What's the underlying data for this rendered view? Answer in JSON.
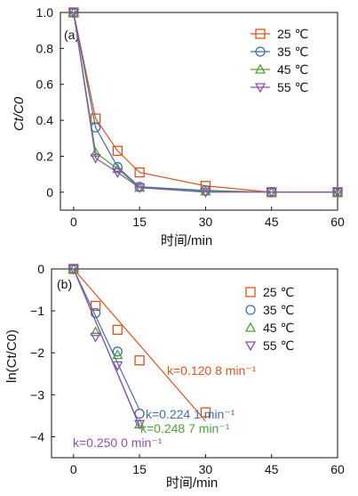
{
  "colors": {
    "s25": "#d9531e",
    "s35": "#3f6fa8",
    "s45": "#4ea23a",
    "s55": "#8e4fb0",
    "axis": "#111111"
  },
  "chart_data": [
    {
      "type": "line",
      "panel": "(a)",
      "xlabel": "时间/min",
      "ylabel": "Ct/C0",
      "xlim": [
        -3,
        60
      ],
      "ylim": [
        -0.1,
        1.0
      ],
      "x_ticks": [
        "0",
        "15",
        "30",
        "45",
        "60"
      ],
      "y_ticks": [
        "0",
        "0.2",
        "0.4",
        "0.6",
        "0.8",
        "1.0"
      ],
      "x": [
        0,
        5,
        10,
        15,
        30,
        45,
        60
      ],
      "legend_position": "top-right",
      "series": [
        {
          "name": "25 ℃",
          "marker": "square",
          "values": [
            1.0,
            0.41,
            0.23,
            0.11,
            0.035,
            0.0,
            0.0
          ]
        },
        {
          "name": "35 ℃",
          "marker": "circle",
          "values": [
            1.0,
            0.36,
            0.14,
            0.03,
            0.01,
            0.0,
            0.0
          ]
        },
        {
          "name": "45 ℃",
          "marker": "triangle-up",
          "values": [
            1.0,
            0.22,
            0.13,
            0.025,
            0.005,
            0.0,
            0.0
          ]
        },
        {
          "name": "55 ℃",
          "marker": "triangle-down",
          "values": [
            1.0,
            0.19,
            0.11,
            0.025,
            0.0,
            0.0,
            0.0
          ]
        }
      ]
    },
    {
      "type": "scatter",
      "panel": "(b)",
      "xlabel": "时间/min",
      "ylabel": "ln(Ct/C0)",
      "xlim": [
        -5,
        60
      ],
      "ylim": [
        -4.5,
        0
      ],
      "x_ticks": [
        "0",
        "15",
        "30",
        "45",
        "60"
      ],
      "y_ticks": [
        "0",
        "−1",
        "−2",
        "−3",
        "−4"
      ],
      "legend_position": "top-right",
      "series": [
        {
          "name": "25 ℃",
          "marker": "square",
          "x": [
            0,
            5,
            10,
            15,
            30
          ],
          "values": [
            0,
            -0.88,
            -1.45,
            -2.18,
            -3.42
          ],
          "k_label": "k=0.120 8 min⁻¹",
          "slope": -0.1208
        },
        {
          "name": "35 ℃",
          "marker": "circle",
          "x": [
            0,
            5,
            10,
            15
          ],
          "values": [
            0,
            -1.05,
            -1.97,
            -3.45
          ],
          "k_label": "k=0.224 1 min⁻¹",
          "slope": -0.2241
        },
        {
          "name": "45 ℃",
          "marker": "triangle-up",
          "x": [
            0,
            5,
            10,
            15
          ],
          "values": [
            0,
            -1.5,
            -2.05,
            -3.7
          ],
          "k_label": "k=0.248 7 min⁻¹",
          "slope": -0.2487
        },
        {
          "name": "55 ℃",
          "marker": "triangle-down",
          "x": [
            0,
            5,
            10,
            15
          ],
          "values": [
            0,
            -1.62,
            -2.3,
            -3.7
          ],
          "k_label": "k=0.250 0 min⁻¹",
          "slope": -0.25
        }
      ]
    }
  ]
}
